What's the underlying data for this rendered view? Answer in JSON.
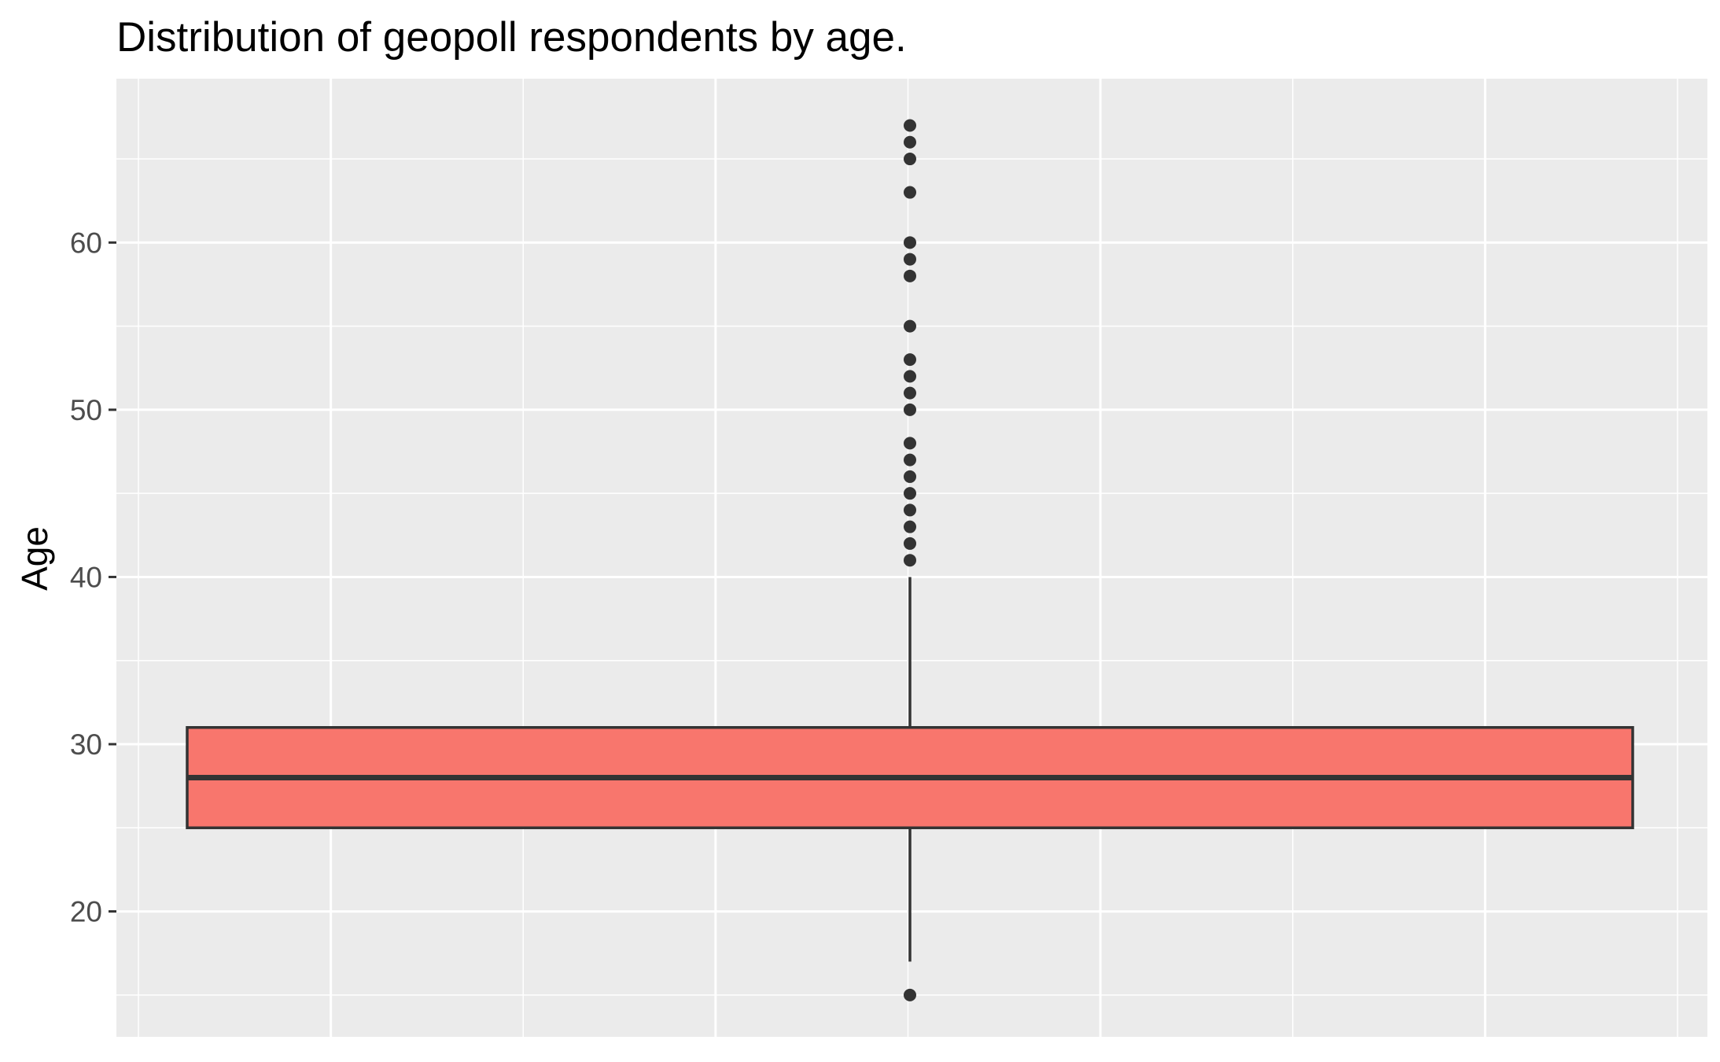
{
  "chart_data": {
    "type": "boxplot",
    "title": "Distribution of geopoll respondents by age.",
    "xlabel": "",
    "ylabel": "Age",
    "ylim": [
      12.5,
      69.8
    ],
    "y_ticks": [
      20,
      30,
      40,
      50,
      60
    ],
    "y_tick_labels": [
      "20",
      "30",
      "40",
      "50",
      "60"
    ],
    "grid": true,
    "x_minor_grid_count": 8,
    "box": {
      "lower_whisker": 17,
      "q1": 25,
      "median": 28,
      "q3": 31,
      "upper_whisker": 40
    },
    "outliers": [
      15,
      41,
      42,
      43,
      44,
      45,
      46,
      47,
      48,
      50,
      51,
      52,
      53,
      55,
      58,
      59,
      60,
      63,
      65,
      66,
      67
    ],
    "colors": {
      "panel_background": "#ebebeb",
      "grid_line": "#ffffff",
      "box_fill": "#f8766d",
      "box_line": "#333333",
      "outlier": "#333333",
      "tick_label": "#4d4d4d",
      "tick_mark": "#333333"
    }
  }
}
